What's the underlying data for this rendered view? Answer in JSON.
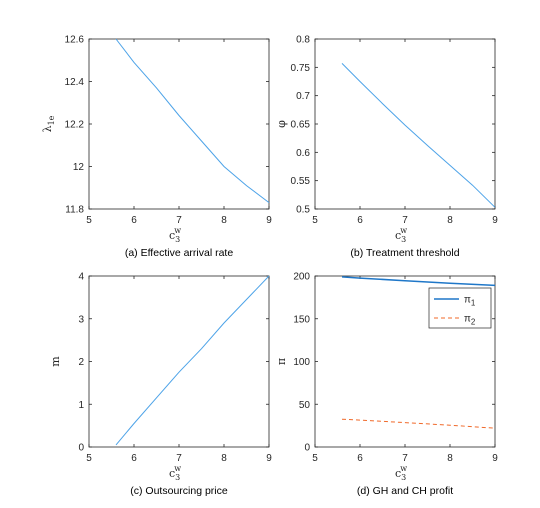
{
  "chart_data": [
    {
      "type": "line",
      "caption": "(a) Effective arrival rate",
      "xlabel": "c_3^w",
      "ylabel": "λ_1e",
      "xlim": [
        5,
        9
      ],
      "ylim": [
        11.8,
        12.6
      ],
      "xticks": [
        "5",
        "6",
        "7",
        "8",
        "9"
      ],
      "yticks": [
        "11.8",
        "12",
        "12.2",
        "12.4",
        "12.6"
      ],
      "series": [
        {
          "color": "#4DA3E8",
          "dash": "solid",
          "width": 1,
          "x": [
            5.6,
            6,
            6.5,
            7,
            7.5,
            8,
            8.5,
            9
          ],
          "y": [
            12.6,
            12.49,
            12.37,
            12.24,
            12.12,
            12.0,
            11.91,
            11.83
          ]
        }
      ]
    },
    {
      "type": "line",
      "caption": "(b) Treatment threshold",
      "xlabel": "c_3^w",
      "ylabel": "φ",
      "xlim": [
        5,
        9
      ],
      "ylim": [
        0.5,
        0.8
      ],
      "xticks": [
        "5",
        "6",
        "7",
        "8",
        "9"
      ],
      "yticks": [
        "0.5",
        "0.55",
        "0.6",
        "0.65",
        "0.7",
        "0.75",
        "0.8"
      ],
      "series": [
        {
          "color": "#4DA3E8",
          "dash": "solid",
          "width": 1,
          "x": [
            5.6,
            6,
            6.5,
            7,
            7.5,
            8,
            8.5,
            9
          ],
          "y": [
            0.757,
            0.725,
            0.686,
            0.648,
            0.612,
            0.577,
            0.542,
            0.503
          ]
        }
      ]
    },
    {
      "type": "line",
      "caption": "(c) Outsourcing price",
      "xlabel": "c_3^w",
      "ylabel": "m",
      "xlim": [
        5,
        9
      ],
      "ylim": [
        0,
        4
      ],
      "xticks": [
        "5",
        "6",
        "7",
        "8",
        "9"
      ],
      "yticks": [
        "0",
        "1",
        "2",
        "3",
        "4"
      ],
      "series": [
        {
          "color": "#4DA3E8",
          "dash": "solid",
          "width": 1,
          "x": [
            5.6,
            6,
            6.5,
            7,
            7.5,
            8,
            8.5,
            9
          ],
          "y": [
            0.05,
            0.55,
            1.15,
            1.75,
            2.3,
            2.9,
            3.45,
            4.0
          ]
        }
      ]
    },
    {
      "type": "line",
      "caption": "(d) GH and CH profit",
      "xlabel": "c_3^w",
      "ylabel": "π",
      "xlim": [
        5,
        9
      ],
      "ylim": [
        0,
        200
      ],
      "xticks": [
        "5",
        "6",
        "7",
        "8",
        "9"
      ],
      "yticks": [
        "0",
        "50",
        "100",
        "150",
        "200"
      ],
      "legend": {
        "position": "top-right",
        "entries": [
          "π_1",
          "π_2"
        ]
      },
      "series": [
        {
          "name": "π_1",
          "color": "#1F77C8",
          "dash": "solid",
          "width": 1.5,
          "x": [
            5.6,
            6,
            7,
            8,
            9
          ],
          "y": [
            199,
            197.5,
            194.5,
            191.5,
            189
          ]
        },
        {
          "name": "π_2",
          "color": "#F0692A",
          "dash": "dashed",
          "width": 1,
          "x": [
            5.6,
            6,
            7,
            8,
            9
          ],
          "y": [
            32.5,
            31.5,
            28.5,
            25.5,
            22
          ]
        }
      ]
    }
  ]
}
